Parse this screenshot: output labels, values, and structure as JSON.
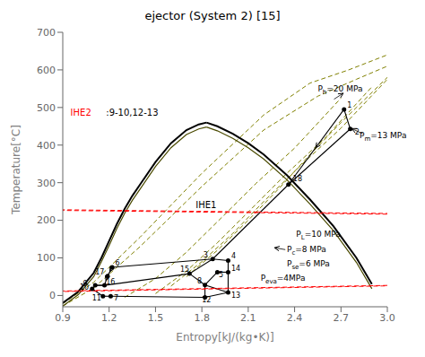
{
  "chart_data": {
    "type": "line",
    "title": "ejector (System 2) [15]",
    "xlabel": "Entropy[kJ/(kg•K)]",
    "ylabel": "Temperature[°C]",
    "xlim": [
      0.9,
      3.0
    ],
    "xticks": [
      0.9,
      1.2,
      1.5,
      1.8,
      2.1,
      2.4,
      2.7,
      {
        "value": 3.0,
        "label": "3.0"
      }
    ],
    "ylim": [
      -30,
      700
    ],
    "yticks": [
      0,
      100,
      200,
      300,
      400,
      500,
      600,
      700
    ],
    "grid": false,
    "series": [
      {
        "x": [
          0.9,
          1.1,
          1.4,
          1.8,
          2.2,
          2.5,
          2.75,
          3.0
        ],
        "values": [
          -22,
          35,
          155,
          325,
          480,
          565,
          600,
          640
        ],
        "color": "#808000",
        "line_style": "dashed"
      },
      {
        "x": [
          0.9,
          1.1,
          1.4,
          1.8,
          2.2,
          2.55,
          2.8,
          3.0
        ],
        "values": [
          -28,
          20,
          130,
          290,
          440,
          530,
          575,
          610
        ],
        "color": "#808000",
        "line_style": "dashed"
      },
      {
        "x": [
          1.7,
          1.9,
          2.1,
          2.3,
          2.5,
          2.7,
          3.0
        ],
        "values": [
          50,
          120,
          200,
          285,
          375,
          460,
          580
        ],
        "color": "#808000",
        "line_style": "dashed"
      },
      {
        "x": [
          1.6,
          1.8,
          2.0,
          2.2,
          2.45,
          2.7,
          3.0
        ],
        "values": [
          25,
          90,
          165,
          250,
          350,
          445,
          575
        ],
        "color": "#808000",
        "line_style": "dashed"
      },
      {
        "x": [
          1.5,
          1.7,
          1.9,
          2.1,
          2.35,
          2.6,
          2.9
        ],
        "values": [
          5,
          65,
          140,
          222,
          325,
          420,
          555
        ],
        "color": "#808000",
        "line_style": "dashed"
      },
      {
        "x": [
          1.3,
          1.5,
          1.7,
          1.9,
          2.15,
          2.4,
          2.7
        ],
        "values": [
          -5,
          45,
          115,
          196,
          298,
          392,
          525
        ],
        "color": "#808000",
        "line_style": "dashed"
      },
      {
        "x": [
          0.9,
          1.0,
          1.1,
          1.15,
          1.2,
          1.25,
          1.3,
          1.35,
          1.4,
          1.5,
          1.6,
          1.7,
          1.78,
          1.83
        ],
        "values": [
          -20,
          10,
          60,
          100,
          145,
          190,
          230,
          265,
          295,
          355,
          405,
          440,
          455,
          460
        ],
        "color": "black",
        "line_style": "solid"
      },
      {
        "x": [
          1.83,
          1.9,
          2.0,
          2.1,
          2.2,
          2.35,
          2.5,
          2.65,
          2.8,
          2.9
        ],
        "values": [
          460,
          450,
          430,
          405,
          375,
          320,
          255,
          185,
          100,
          30
        ],
        "color": "black",
        "line_style": "solid"
      },
      {
        "x": [
          0.9,
          1.0,
          1.1,
          1.15,
          1.2,
          1.25,
          1.3,
          1.35,
          1.4,
          1.5,
          1.6,
          1.7,
          1.78,
          1.83
        ],
        "values": [
          -28,
          2,
          50,
          90,
          133,
          178,
          218,
          253,
          283,
          343,
          393,
          428,
          443,
          448
        ],
        "color": "#4a4a00",
        "line_style": "solid"
      },
      {
        "x": [
          1.83,
          1.9,
          2.0,
          2.1,
          2.2,
          2.35,
          2.5,
          2.65,
          2.8,
          2.9
        ],
        "values": [
          448,
          438,
          418,
          393,
          363,
          308,
          243,
          173,
          88,
          18
        ],
        "color": "#4a4a00",
        "line_style": "solid"
      }
    ],
    "points": {
      "type": "scatter",
      "color": "black",
      "marker": "circle",
      "labels": [
        "1",
        "2",
        "18",
        "3",
        "4",
        "5",
        "14",
        "8",
        "12",
        "13",
        "15",
        "6",
        "17",
        "9",
        "16",
        "10",
        "11",
        "7"
      ],
      "x": [
        2.72,
        2.76,
        2.36,
        1.87,
        1.97,
        1.9,
        1.97,
        1.82,
        1.82,
        1.97,
        1.72,
        1.22,
        1.19,
        1.11,
        1.17,
        1.09,
        1.16,
        1.21
      ],
      "values": [
        495,
        443,
        295,
        97,
        93,
        62,
        62,
        28,
        -5,
        8,
        58,
        75,
        52,
        27,
        27,
        18,
        -2,
        -2
      ],
      "label_offsets": [
        [
          0.02,
          5
        ],
        [
          0.03,
          -15
        ],
        [
          0.03,
          8
        ],
        [
          -0.06,
          5
        ],
        [
          0.02,
          5
        ],
        [
          0.01,
          -14
        ],
        [
          0.02,
          3
        ],
        [
          -0.05,
          5
        ],
        [
          -0.02,
          -14
        ],
        [
          0.02,
          -14
        ],
        [
          -0.06,
          5
        ],
        [
          0.02,
          4
        ],
        [
          -0.08,
          3
        ],
        [
          -0.08,
          -1
        ],
        [
          0.01,
          3
        ],
        [
          -0.08,
          -2
        ],
        [
          -0.07,
          -12
        ],
        [
          0.02,
          -12
        ]
      ]
    },
    "connections": {
      "color": "black",
      "pairs": [
        [
          "1",
          "18"
        ],
        [
          "18",
          "3"
        ],
        [
          "3",
          "4"
        ],
        [
          "4",
          "14"
        ],
        [
          "14",
          "13"
        ],
        [
          "13",
          "12"
        ],
        [
          "12",
          "8"
        ],
        [
          "8",
          "15"
        ],
        [
          "15",
          "3"
        ],
        [
          "8",
          "13"
        ],
        [
          "6",
          "17"
        ],
        [
          "17",
          "16"
        ],
        [
          "16",
          "9"
        ],
        [
          "9",
          "10"
        ],
        [
          "10",
          "11"
        ],
        [
          "11",
          "7"
        ],
        [
          "7",
          "12"
        ],
        [
          "5",
          "8"
        ],
        [
          "15",
          "16"
        ],
        [
          "1",
          "2"
        ],
        [
          "2",
          "18"
        ],
        [
          "6",
          "3"
        ],
        [
          "9",
          "16"
        ],
        [
          "5",
          "14"
        ]
      ],
      "arrows": [
        [
          "1",
          "18"
        ],
        [
          "6",
          "17"
        ],
        [
          "17",
          "16"
        ]
      ]
    },
    "ellipses": [
      {
        "cx": 1.145,
        "cy": 13,
        "w": 0.19,
        "h": 50,
        "angle": -8,
        "color": "red",
        "line_style": "dashed"
      },
      {
        "cx": 1.98,
        "cy": 222,
        "w": 0.38,
        "h": 72,
        "angle": 12,
        "color": "red",
        "line_style": "dashed"
      }
    ],
    "annotations": [
      {
        "text": "IHE2",
        "x": 0.95,
        "y": 478,
        "color": "red"
      },
      {
        "text": ":9-10,12-13",
        "x": 1.18,
        "y": 478,
        "color": "black"
      },
      {
        "text": "IHE1",
        "x": 1.76,
        "y": 232,
        "color": "black"
      },
      {
        "text": "Ph=20 MPa",
        "subscript": "h",
        "x": 2.55,
        "y": 543,
        "color": "black"
      },
      {
        "text": "Pm=13 MPa",
        "subscript": "m",
        "x": 2.82,
        "y": 418,
        "color": "black"
      },
      {
        "text": "PL=10 MPa",
        "subscript": "L",
        "x": 2.41,
        "y": 155,
        "color": "black"
      },
      {
        "text": "Pc=8 MPa",
        "subscript": "c",
        "x": 2.35,
        "y": 115,
        "color": "black"
      },
      {
        "text": "Pse=6 MPa",
        "subscript": "se",
        "x": 2.35,
        "y": 78,
        "color": "black"
      },
      {
        "text": "Peva=4MPa",
        "subscript": "eva",
        "x": 2.18,
        "y": 38,
        "color": "black"
      }
    ],
    "annotation_arrows": [
      {
        "from": [
          2.655,
          522
        ],
        "to": [
          2.715,
          538
        ]
      },
      {
        "from": [
          2.84,
          430
        ],
        "to": [
          2.77,
          444
        ]
      },
      {
        "from": [
          2.34,
          122
        ],
        "to": [
          2.27,
          127
        ]
      }
    ]
  }
}
